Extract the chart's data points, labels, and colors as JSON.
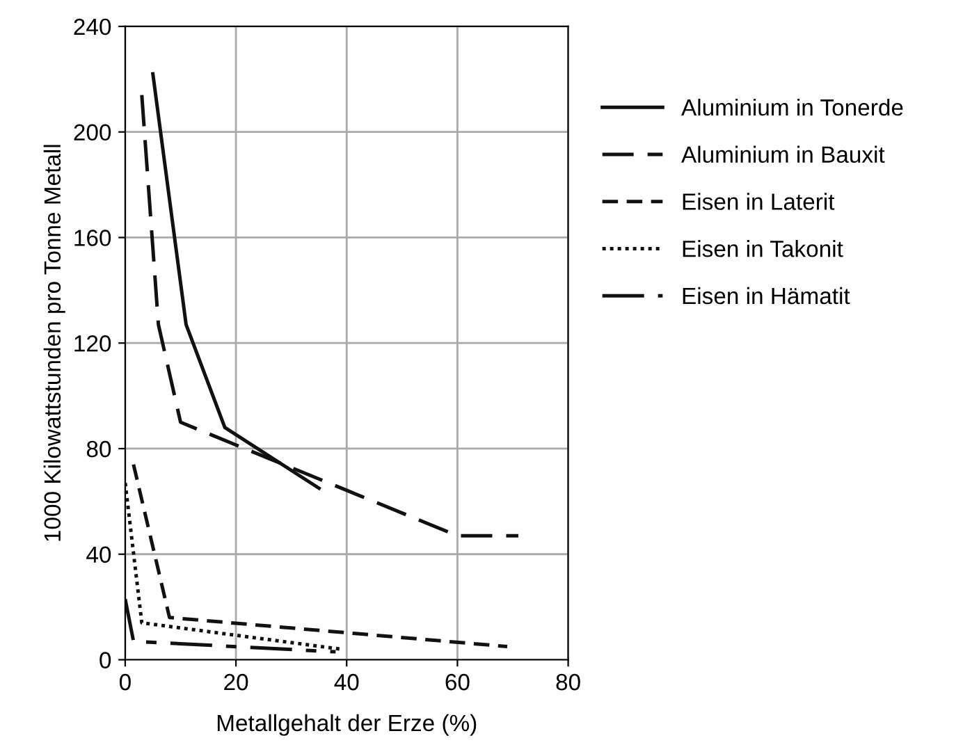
{
  "chart_data": {
    "type": "line",
    "xlabel": "Metallgehalt der Erze (%)",
    "ylabel": "1000 Kilowattstunden pro Tonne Metall",
    "xlim": [
      0,
      80
    ],
    "xticks": [
      0,
      20,
      40,
      60,
      80
    ],
    "ylim": [
      0,
      240
    ],
    "yticks": [
      0,
      40,
      80,
      120,
      160,
      200,
      240
    ],
    "grid": true,
    "legend": "right",
    "marker": "none",
    "series": [
      {
        "name": "Aluminium in Tonerde",
        "color": "#111111",
        "line_style": "solid",
        "x": [
          5,
          11,
          18,
          35
        ],
        "values": [
          222,
          127,
          88,
          65
        ]
      },
      {
        "name": "Aluminium in Bauxit",
        "color": "#111111",
        "line_style": "longdash",
        "x": [
          3,
          6,
          10,
          60,
          71
        ],
        "values": [
          214,
          127,
          90,
          47,
          47
        ]
      },
      {
        "name": "Eisen in Laterit",
        "color": "#111111",
        "line_style": "dashed",
        "x": [
          1.5,
          8,
          69
        ],
        "values": [
          74,
          16,
          5
        ]
      },
      {
        "name": "Eisen in Takonit",
        "color": "#111111",
        "line_style": "dotted",
        "x": [
          0,
          3,
          39
        ],
        "values": [
          67,
          14,
          4
        ]
      },
      {
        "name": "Eisen in Hämatit",
        "color": "#111111",
        "line_style": "dashdot",
        "x": [
          0,
          1.5,
          38
        ],
        "values": [
          23,
          7,
          3
        ]
      }
    ]
  }
}
